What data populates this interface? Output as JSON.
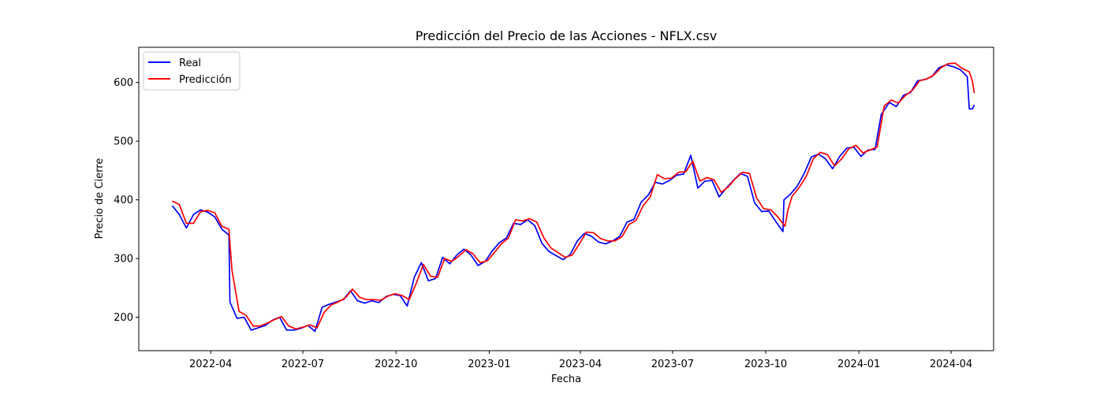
{
  "chart_data": {
    "type": "line",
    "title": "Predicción del Precio de las Acciones - NFLX.csv",
    "xlabel": "Fecha",
    "ylabel": "Precio de Cierre",
    "x_tick_labels": [
      "2022-04",
      "2022-07",
      "2022-10",
      "2023-01",
      "2023-04",
      "2023-07",
      "2023-10",
      "2024-01",
      "2024-04"
    ],
    "y_ticks": [
      200,
      300,
      400,
      500,
      600
    ],
    "xlim": [
      "2022-01-20",
      "2024-05-13"
    ],
    "ylim": [
      143,
      660
    ],
    "legend_position": "top-left",
    "grid": false,
    "series": [
      {
        "name": "Real",
        "color": "#0000ff",
        "points": [
          [
            "2022-02-22",
            390
          ],
          [
            "2022-03-01",
            375
          ],
          [
            "2022-03-08",
            352
          ],
          [
            "2022-03-15",
            375
          ],
          [
            "2022-03-22",
            383
          ],
          [
            "2022-03-29",
            379
          ],
          [
            "2022-04-05",
            371
          ],
          [
            "2022-04-12",
            350
          ],
          [
            "2022-04-19",
            340
          ],
          [
            "2022-04-20",
            226
          ],
          [
            "2022-04-27",
            198
          ],
          [
            "2022-05-04",
            200
          ],
          [
            "2022-05-11",
            178
          ],
          [
            "2022-05-18",
            182
          ],
          [
            "2022-05-25",
            186
          ],
          [
            "2022-06-01",
            195
          ],
          [
            "2022-06-08",
            200
          ],
          [
            "2022-06-15",
            178
          ],
          [
            "2022-06-22",
            178
          ],
          [
            "2022-06-29",
            181
          ],
          [
            "2022-07-06",
            186
          ],
          [
            "2022-07-13",
            176
          ],
          [
            "2022-07-20",
            217
          ],
          [
            "2022-07-27",
            222
          ],
          [
            "2022-08-03",
            226
          ],
          [
            "2022-08-10",
            230
          ],
          [
            "2022-08-17",
            245
          ],
          [
            "2022-08-24",
            228
          ],
          [
            "2022-08-31",
            224
          ],
          [
            "2022-09-07",
            228
          ],
          [
            "2022-09-14",
            225
          ],
          [
            "2022-09-21",
            235
          ],
          [
            "2022-09-28",
            239
          ],
          [
            "2022-10-05",
            237
          ],
          [
            "2022-10-12",
            219
          ],
          [
            "2022-10-19",
            268
          ],
          [
            "2022-10-26",
            293
          ],
          [
            "2022-11-02",
            262
          ],
          [
            "2022-11-09",
            266
          ],
          [
            "2022-11-16",
            302
          ],
          [
            "2022-11-23",
            291
          ],
          [
            "2022-11-30",
            306
          ],
          [
            "2022-12-07",
            316
          ],
          [
            "2022-12-14",
            306
          ],
          [
            "2022-12-21",
            288
          ],
          [
            "2022-12-28",
            295
          ],
          [
            "2023-01-04",
            313
          ],
          [
            "2023-01-11",
            327
          ],
          [
            "2023-01-18",
            335
          ],
          [
            "2023-01-25",
            360
          ],
          [
            "2023-02-01",
            358
          ],
          [
            "2023-02-08",
            366
          ],
          [
            "2023-02-15",
            356
          ],
          [
            "2023-02-22",
            326
          ],
          [
            "2023-03-01",
            312
          ],
          [
            "2023-03-08",
            305
          ],
          [
            "2023-03-15",
            298
          ],
          [
            "2023-03-22",
            307
          ],
          [
            "2023-03-29",
            330
          ],
          [
            "2023-04-05",
            343
          ],
          [
            "2023-04-12",
            338
          ],
          [
            "2023-04-19",
            328
          ],
          [
            "2023-04-26",
            325
          ],
          [
            "2023-05-03",
            330
          ],
          [
            "2023-05-10",
            338
          ],
          [
            "2023-05-17",
            362
          ],
          [
            "2023-05-24",
            367
          ],
          [
            "2023-05-31",
            396
          ],
          [
            "2023-06-07",
            408
          ],
          [
            "2023-06-14",
            430
          ],
          [
            "2023-06-21",
            427
          ],
          [
            "2023-06-28",
            433
          ],
          [
            "2023-07-05",
            442
          ],
          [
            "2023-07-12",
            444
          ],
          [
            "2023-07-19",
            476
          ],
          [
            "2023-07-26",
            420
          ],
          [
            "2023-08-02",
            432
          ],
          [
            "2023-08-09",
            433
          ],
          [
            "2023-08-16",
            405
          ],
          [
            "2023-08-23",
            420
          ],
          [
            "2023-08-30",
            433
          ],
          [
            "2023-09-06",
            445
          ],
          [
            "2023-09-13",
            440
          ],
          [
            "2023-09-20",
            395
          ],
          [
            "2023-09-27",
            380
          ],
          [
            "2023-10-04",
            381
          ],
          [
            "2023-10-11",
            363
          ],
          [
            "2023-10-18",
            346
          ],
          [
            "2023-10-19",
            400
          ],
          [
            "2023-10-25",
            409
          ],
          [
            "2023-11-01",
            423
          ],
          [
            "2023-11-08",
            445
          ],
          [
            "2023-11-15",
            473
          ],
          [
            "2023-11-22",
            478
          ],
          [
            "2023-11-29",
            470
          ],
          [
            "2023-12-06",
            453
          ],
          [
            "2023-12-13",
            474
          ],
          [
            "2023-12-20",
            488
          ],
          [
            "2023-12-27",
            490
          ],
          [
            "2024-01-03",
            474
          ],
          [
            "2024-01-10",
            485
          ],
          [
            "2024-01-17",
            486
          ],
          [
            "2024-01-23",
            545
          ],
          [
            "2024-01-31",
            566
          ],
          [
            "2024-02-07",
            559
          ],
          [
            "2024-02-14",
            578
          ],
          [
            "2024-02-21",
            583
          ],
          [
            "2024-02-28",
            603
          ],
          [
            "2024-03-06",
            605
          ],
          [
            "2024-03-13",
            610
          ],
          [
            "2024-03-20",
            625
          ],
          [
            "2024-03-27",
            630
          ],
          [
            "2024-04-03",
            627
          ],
          [
            "2024-04-10",
            622
          ],
          [
            "2024-04-17",
            610
          ],
          [
            "2024-04-19",
            555
          ],
          [
            "2024-04-22",
            555
          ],
          [
            "2024-04-24",
            562
          ]
        ]
      },
      {
        "name": "Predicción",
        "color": "#ff0000",
        "points": [
          [
            "2022-02-22",
            398
          ],
          [
            "2022-03-01",
            392
          ],
          [
            "2022-03-08",
            360
          ],
          [
            "2022-03-15",
            360
          ],
          [
            "2022-03-22",
            380
          ],
          [
            "2022-03-29",
            382
          ],
          [
            "2022-04-05",
            378
          ],
          [
            "2022-04-12",
            355
          ],
          [
            "2022-04-19",
            350
          ],
          [
            "2022-04-22",
            280
          ],
          [
            "2022-04-29",
            210
          ],
          [
            "2022-05-06",
            203
          ],
          [
            "2022-05-13",
            185
          ],
          [
            "2022-05-20",
            185
          ],
          [
            "2022-05-27",
            190
          ],
          [
            "2022-06-03",
            196
          ],
          [
            "2022-06-10",
            201
          ],
          [
            "2022-06-17",
            185
          ],
          [
            "2022-06-24",
            180
          ],
          [
            "2022-07-01",
            183
          ],
          [
            "2022-07-08",
            187
          ],
          [
            "2022-07-15",
            182
          ],
          [
            "2022-07-22",
            208
          ],
          [
            "2022-07-29",
            221
          ],
          [
            "2022-08-05",
            226
          ],
          [
            "2022-08-12",
            233
          ],
          [
            "2022-08-19",
            248
          ],
          [
            "2022-08-26",
            234
          ],
          [
            "2022-09-02",
            230
          ],
          [
            "2022-09-09",
            230
          ],
          [
            "2022-09-16",
            229
          ],
          [
            "2022-09-23",
            236
          ],
          [
            "2022-09-30",
            240
          ],
          [
            "2022-10-07",
            237
          ],
          [
            "2022-10-14",
            230
          ],
          [
            "2022-10-21",
            258
          ],
          [
            "2022-10-28",
            290
          ],
          [
            "2022-11-04",
            270
          ],
          [
            "2022-11-11",
            268
          ],
          [
            "2022-11-18",
            300
          ],
          [
            "2022-11-25",
            295
          ],
          [
            "2022-12-02",
            304
          ],
          [
            "2022-12-09",
            315
          ],
          [
            "2022-12-16",
            308
          ],
          [
            "2022-12-23",
            293
          ],
          [
            "2022-12-30",
            296
          ],
          [
            "2023-01-06",
            310
          ],
          [
            "2023-01-13",
            325
          ],
          [
            "2023-01-20",
            335
          ],
          [
            "2023-01-27",
            366
          ],
          [
            "2023-02-03",
            364
          ],
          [
            "2023-02-10",
            368
          ],
          [
            "2023-02-17",
            362
          ],
          [
            "2023-02-24",
            335
          ],
          [
            "2023-03-03",
            318
          ],
          [
            "2023-03-10",
            310
          ],
          [
            "2023-03-17",
            302
          ],
          [
            "2023-03-24",
            306
          ],
          [
            "2023-03-31",
            325
          ],
          [
            "2023-04-07",
            345
          ],
          [
            "2023-04-14",
            344
          ],
          [
            "2023-04-21",
            334
          ],
          [
            "2023-04-28",
            330
          ],
          [
            "2023-05-05",
            330
          ],
          [
            "2023-05-12",
            337
          ],
          [
            "2023-05-19",
            358
          ],
          [
            "2023-05-26",
            365
          ],
          [
            "2023-06-02",
            390
          ],
          [
            "2023-06-09",
            405
          ],
          [
            "2023-06-16",
            443
          ],
          [
            "2023-06-23",
            436
          ],
          [
            "2023-06-30",
            437
          ],
          [
            "2023-07-07",
            447
          ],
          [
            "2023-07-14",
            448
          ],
          [
            "2023-07-21",
            466
          ],
          [
            "2023-07-28",
            432
          ],
          [
            "2023-08-04",
            438
          ],
          [
            "2023-08-11",
            434
          ],
          [
            "2023-08-18",
            413
          ],
          [
            "2023-08-25",
            422
          ],
          [
            "2023-09-01",
            436
          ],
          [
            "2023-09-08",
            447
          ],
          [
            "2023-09-15",
            445
          ],
          [
            "2023-09-22",
            403
          ],
          [
            "2023-09-29",
            385
          ],
          [
            "2023-10-06",
            383
          ],
          [
            "2023-10-13",
            371
          ],
          [
            "2023-10-20",
            355
          ],
          [
            "2023-10-23",
            383
          ],
          [
            "2023-10-27",
            406
          ],
          [
            "2023-11-03",
            421
          ],
          [
            "2023-11-10",
            440
          ],
          [
            "2023-11-17",
            470
          ],
          [
            "2023-11-24",
            481
          ],
          [
            "2023-12-01",
            477
          ],
          [
            "2023-12-08",
            458
          ],
          [
            "2023-12-15",
            470
          ],
          [
            "2023-12-22",
            487
          ],
          [
            "2023-12-29",
            493
          ],
          [
            "2024-01-05",
            480
          ],
          [
            "2024-01-12",
            485
          ],
          [
            "2024-01-19",
            490
          ],
          [
            "2024-01-26",
            560
          ],
          [
            "2024-02-02",
            570
          ],
          [
            "2024-02-09",
            565
          ],
          [
            "2024-02-16",
            578
          ],
          [
            "2024-02-23",
            587
          ],
          [
            "2024-03-01",
            603
          ],
          [
            "2024-03-08",
            606
          ],
          [
            "2024-03-15",
            613
          ],
          [
            "2024-03-22",
            625
          ],
          [
            "2024-03-29",
            632
          ],
          [
            "2024-04-05",
            633
          ],
          [
            "2024-04-12",
            624
          ],
          [
            "2024-04-19",
            618
          ],
          [
            "2024-04-22",
            603
          ],
          [
            "2024-04-24",
            582
          ]
        ]
      }
    ]
  }
}
